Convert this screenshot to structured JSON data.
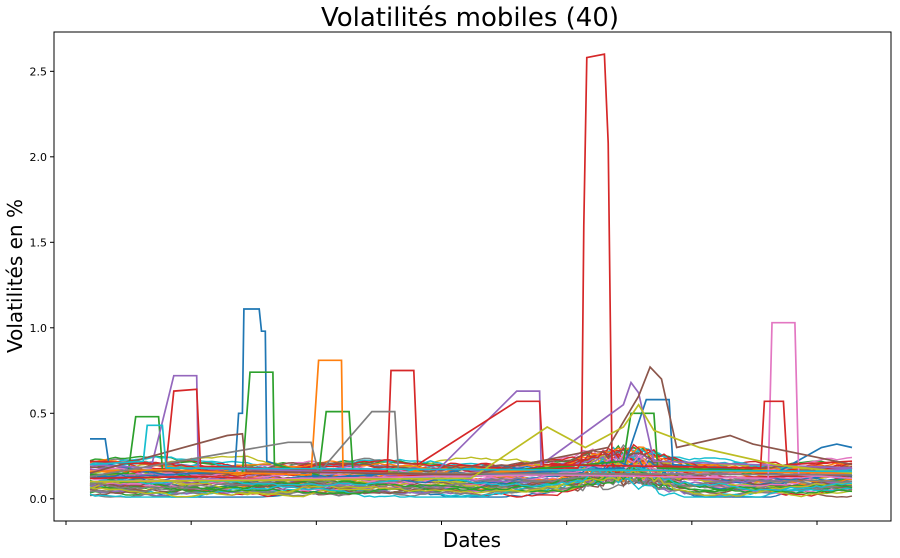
{
  "chart_data": {
    "type": "line",
    "title": "Volatilités mobiles (40)",
    "xlabel": "Dates",
    "ylabel": "Volatilités en %",
    "ylim": [
      -0.13,
      2.73
    ],
    "y_ticks": [
      0.0,
      0.5,
      1.0,
      1.5,
      2.0,
      2.5
    ],
    "y_tick_labels": [
      "0.0",
      "0.5",
      "1.0",
      "1.5",
      "2.0",
      "2.5"
    ],
    "x_tick_count": 7,
    "x_tick_labels": [],
    "grid": false,
    "legend": "none",
    "baseline_series_count": 60,
    "colors": [
      "#1f77b4",
      "#ff7f0e",
      "#2ca02c",
      "#d62728",
      "#9467bd",
      "#8c564b",
      "#e377c2",
      "#7f7f7f",
      "#bcbd22",
      "#17becf"
    ],
    "series": [
      {
        "color": "#d62728",
        "values": [
          [
            0.0,
            0.12
          ],
          [
            0.15,
            0.13
          ],
          [
            0.25,
            0.11
          ],
          [
            0.35,
            0.12
          ],
          [
            0.45,
            0.14
          ],
          [
            0.55,
            0.15
          ],
          [
            0.62,
            0.18
          ],
          [
            0.64,
            0.18
          ],
          [
            0.645,
            0.22
          ],
          [
            0.648,
            1.6
          ],
          [
            0.652,
            2.58
          ],
          [
            0.675,
            2.6
          ],
          [
            0.68,
            2.08
          ],
          [
            0.685,
            0.22
          ],
          [
            0.69,
            0.15
          ],
          [
            0.8,
            0.12
          ],
          [
            1.0,
            0.14
          ]
        ]
      },
      {
        "color": "#1f77b4",
        "values": [
          [
            0.0,
            0.35
          ],
          [
            0.02,
            0.35
          ],
          [
            0.025,
            0.2
          ],
          [
            0.1,
            0.14
          ],
          [
            0.19,
            0.16
          ],
          [
            0.195,
            0.5
          ],
          [
            0.2,
            0.5
          ],
          [
            0.202,
            1.11
          ],
          [
            0.222,
            1.11
          ],
          [
            0.225,
            0.98
          ],
          [
            0.23,
            0.98
          ],
          [
            0.232,
            0.22
          ],
          [
            0.3,
            0.12
          ],
          [
            0.4,
            0.15
          ],
          [
            0.5,
            0.13
          ],
          [
            0.6,
            0.16
          ],
          [
            0.7,
            0.18
          ],
          [
            0.73,
            0.58
          ],
          [
            0.76,
            0.58
          ],
          [
            0.765,
            0.2
          ],
          [
            0.9,
            0.15
          ],
          [
            0.96,
            0.3
          ],
          [
            0.98,
            0.32
          ],
          [
            1.0,
            0.3
          ]
        ]
      },
      {
        "color": "#2ca02c",
        "values": [
          [
            0.0,
            0.14
          ],
          [
            0.05,
            0.15
          ],
          [
            0.06,
            0.48
          ],
          [
            0.09,
            0.48
          ],
          [
            0.095,
            0.17
          ],
          [
            0.2,
            0.15
          ],
          [
            0.21,
            0.74
          ],
          [
            0.24,
            0.74
          ],
          [
            0.242,
            0.2
          ],
          [
            0.3,
            0.14
          ],
          [
            0.31,
            0.51
          ],
          [
            0.34,
            0.51
          ],
          [
            0.345,
            0.16
          ],
          [
            0.5,
            0.14
          ],
          [
            0.7,
            0.22
          ],
          [
            0.71,
            0.5
          ],
          [
            0.74,
            0.5
          ],
          [
            0.745,
            0.18
          ],
          [
            1.0,
            0.15
          ]
        ]
      },
      {
        "color": "#ff7f0e",
        "values": [
          [
            0.0,
            0.16
          ],
          [
            0.1,
            0.17
          ],
          [
            0.2,
            0.15
          ],
          [
            0.29,
            0.14
          ],
          [
            0.3,
            0.81
          ],
          [
            0.33,
            0.81
          ],
          [
            0.332,
            0.16
          ],
          [
            0.45,
            0.14
          ],
          [
            0.6,
            0.17
          ],
          [
            0.8,
            0.16
          ],
          [
            1.0,
            0.15
          ]
        ]
      },
      {
        "color": "#9467bd",
        "values": [
          [
            0.0,
            0.2
          ],
          [
            0.08,
            0.18
          ],
          [
            0.11,
            0.72
          ],
          [
            0.14,
            0.72
          ],
          [
            0.142,
            0.18
          ],
          [
            0.3,
            0.16
          ],
          [
            0.45,
            0.14
          ],
          [
            0.56,
            0.63
          ],
          [
            0.59,
            0.63
          ],
          [
            0.592,
            0.2
          ],
          [
            0.7,
            0.55
          ],
          [
            0.71,
            0.68
          ],
          [
            0.72,
            0.62
          ],
          [
            0.74,
            0.22
          ],
          [
            1.0,
            0.18
          ]
        ]
      },
      {
        "color": "#e377c2",
        "values": [
          [
            0.0,
            0.1
          ],
          [
            0.3,
            0.12
          ],
          [
            0.6,
            0.14
          ],
          [
            0.89,
            0.12
          ],
          [
            0.895,
            1.03
          ],
          [
            0.925,
            1.03
          ],
          [
            0.93,
            0.14
          ],
          [
            1.0,
            0.12
          ]
        ]
      },
      {
        "color": "#d62728",
        "values": [
          [
            0.0,
            0.22
          ],
          [
            0.1,
            0.2
          ],
          [
            0.11,
            0.63
          ],
          [
            0.14,
            0.64
          ],
          [
            0.145,
            0.19
          ],
          [
            0.3,
            0.17
          ],
          [
            0.39,
            0.16
          ],
          [
            0.395,
            0.75
          ],
          [
            0.425,
            0.75
          ],
          [
            0.43,
            0.2
          ],
          [
            0.56,
            0.57
          ],
          [
            0.59,
            0.57
          ],
          [
            0.595,
            0.2
          ],
          [
            0.88,
            0.18
          ],
          [
            0.885,
            0.57
          ],
          [
            0.91,
            0.57
          ],
          [
            0.915,
            0.2
          ],
          [
            1.0,
            0.22
          ]
        ]
      },
      {
        "color": "#7f7f7f",
        "values": [
          [
            0.0,
            0.13
          ],
          [
            0.26,
            0.33
          ],
          [
            0.29,
            0.33
          ],
          [
            0.3,
            0.15
          ],
          [
            0.37,
            0.51
          ],
          [
            0.4,
            0.51
          ],
          [
            0.405,
            0.15
          ],
          [
            1.0,
            0.14
          ]
        ]
      },
      {
        "color": "#8c564b",
        "values": [
          [
            0.0,
            0.15
          ],
          [
            0.18,
            0.37
          ],
          [
            0.2,
            0.38
          ],
          [
            0.205,
            0.16
          ],
          [
            0.5,
            0.14
          ],
          [
            0.68,
            0.3
          ],
          [
            0.72,
            0.6
          ],
          [
            0.735,
            0.77
          ],
          [
            0.75,
            0.7
          ],
          [
            0.77,
            0.3
          ],
          [
            0.84,
            0.37
          ],
          [
            0.87,
            0.32
          ],
          [
            1.0,
            0.2
          ]
        ]
      },
      {
        "color": "#bcbd22",
        "values": [
          [
            0.0,
            0.1
          ],
          [
            0.5,
            0.12
          ],
          [
            0.6,
            0.42
          ],
          [
            0.65,
            0.3
          ],
          [
            0.7,
            0.42
          ],
          [
            0.72,
            0.55
          ],
          [
            0.74,
            0.4
          ],
          [
            0.8,
            0.3
          ],
          [
            0.9,
            0.2
          ],
          [
            1.0,
            0.15
          ]
        ]
      },
      {
        "color": "#17becf",
        "values": [
          [
            0.0,
            0.2
          ],
          [
            0.07,
            0.22
          ],
          [
            0.075,
            0.43
          ],
          [
            0.095,
            0.43
          ],
          [
            0.1,
            0.18
          ],
          [
            1.0,
            0.16
          ]
        ]
      }
    ]
  }
}
